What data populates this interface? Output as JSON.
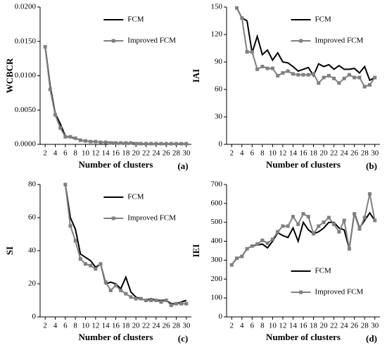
{
  "chart_data": [
    {
      "type": "line",
      "ylabel": "WCBCR",
      "xlabel": "Number of clusters",
      "annotation": "(a)",
      "legend": "upper right",
      "x": [
        2,
        3,
        4,
        5,
        6,
        7,
        8,
        9,
        10,
        11,
        12,
        13,
        14,
        15,
        16,
        17,
        18,
        19,
        20,
        21,
        22,
        23,
        24,
        25,
        26,
        27,
        28,
        29,
        30
      ],
      "xlim": [
        1,
        31
      ],
      "xticks": [
        2,
        4,
        6,
        8,
        10,
        12,
        14,
        16,
        18,
        20,
        22,
        24,
        26,
        28,
        30
      ],
      "ylim": [
        0,
        0.02
      ],
      "yticks": [
        {
          "value": 0,
          "label": "0.0000"
        },
        {
          "value": 0.005,
          "label": "0.0050"
        },
        {
          "value": 0.01,
          "label": "0.0100"
        },
        {
          "value": 0.015,
          "label": "0.0150"
        },
        {
          "value": 0.02,
          "label": "0.0200"
        }
      ],
      "series": [
        {
          "name": "FCM",
          "color": "#000000",
          "marker": "none",
          "values": [
            0.0143,
            0.0085,
            0.0045,
            0.003,
            0.0012,
            0.001,
            0.0009,
            0.0006,
            0.0005,
            0.0004,
            0.0004,
            0.0003,
            0.0003,
            0.0003,
            0.0002,
            0.0002,
            0.0002,
            0.0002,
            0.0002,
            0.0001,
            0.0001,
            0.0001,
            0.0001,
            0.0001,
            0.0001,
            0.0001,
            0.0001,
            0.0001,
            0.0001
          ]
        },
        {
          "name": "Improved FCM",
          "color": "#808080",
          "marker": "square",
          "values": [
            0.0142,
            0.008,
            0.0043,
            0.0024,
            0.0011,
            0.0011,
            0.0009,
            0.0006,
            0.0005,
            0.0004,
            0.0004,
            0.0003,
            0.0003,
            0.0002,
            0.0002,
            0.0002,
            0.0002,
            0.0002,
            0.0001,
            0.0001,
            0.0001,
            0.0001,
            0.0001,
            0.0001,
            0.0001,
            0.0001,
            0.0001,
            0.0001,
            0.0001
          ]
        }
      ]
    },
    {
      "type": "line",
      "ylabel": "IAI",
      "xlabel": "Number of clusters",
      "annotation": "(b)",
      "legend": "upper right",
      "x": [
        2,
        3,
        4,
        5,
        6,
        7,
        8,
        9,
        10,
        11,
        12,
        13,
        14,
        15,
        16,
        17,
        18,
        19,
        20,
        21,
        22,
        23,
        24,
        25,
        26,
        27,
        28,
        29,
        30
      ],
      "xlim": [
        1,
        31
      ],
      "xticks": [
        2,
        4,
        6,
        8,
        10,
        12,
        14,
        16,
        18,
        20,
        22,
        24,
        26,
        28,
        30
      ],
      "ylim": [
        0,
        150
      ],
      "yticks": [
        0,
        30,
        60,
        90,
        120,
        150
      ],
      "series": [
        {
          "name": "FCM",
          "color": "#000000",
          "marker": "none",
          "values": [
            null,
            149,
            138,
            135,
            100,
            118,
            98,
            103,
            92,
            100,
            90,
            89,
            85,
            80,
            82,
            84,
            75,
            88,
            85,
            87,
            82,
            86,
            82,
            82,
            83,
            78,
            85,
            70,
            73
          ]
        },
        {
          "name": "Improved FCM",
          "color": "#808080",
          "marker": "square",
          "values": [
            null,
            149,
            138,
            101,
            101,
            82,
            85,
            83,
            83,
            75,
            78,
            80,
            77,
            76,
            76,
            76,
            77,
            67,
            73,
            75,
            72,
            67,
            72,
            76,
            73,
            73,
            63,
            65,
            73
          ]
        }
      ]
    },
    {
      "type": "line",
      "ylabel": "SI",
      "xlabel": "Number of clusters",
      "annotation": "(c)",
      "legend": "upper right",
      "x": [
        2,
        3,
        4,
        5,
        6,
        7,
        8,
        9,
        10,
        11,
        12,
        13,
        14,
        15,
        16,
        17,
        18,
        19,
        20,
        21,
        22,
        23,
        24,
        25,
        26,
        27,
        28,
        29,
        30
      ],
      "xlim": [
        1,
        31
      ],
      "xticks": [
        2,
        4,
        6,
        8,
        10,
        12,
        14,
        16,
        18,
        20,
        22,
        24,
        26,
        28,
        30
      ],
      "ylim": [
        0,
        80
      ],
      "yticks": [
        0,
        20,
        40,
        60,
        80
      ],
      "series": [
        {
          "name": "FCM",
          "color": "#000000",
          "marker": "none",
          "values": [
            null,
            null,
            null,
            null,
            80,
            60,
            53,
            38,
            36,
            34,
            30,
            32,
            20,
            21,
            20,
            17,
            24,
            15,
            12,
            11,
            10,
            11,
            10,
            10,
            10,
            8,
            8,
            9,
            10
          ]
        },
        {
          "name": "Improved FCM",
          "color": "#808080",
          "marker": "square",
          "values": [
            null,
            null,
            null,
            null,
            80,
            55,
            46,
            35,
            32,
            31,
            29,
            32,
            21,
            16,
            19,
            16,
            14,
            12,
            11,
            11,
            10,
            10,
            10,
            9,
            10,
            7,
            8,
            8,
            8
          ]
        }
      ]
    },
    {
      "type": "line",
      "ylabel": "IEI",
      "xlabel": "Number of clusters",
      "annotation": "(d)",
      "legend": "lower right",
      "x": [
        2,
        3,
        4,
        5,
        6,
        7,
        8,
        9,
        10,
        11,
        12,
        13,
        14,
        15,
        16,
        17,
        18,
        19,
        20,
        21,
        22,
        23,
        24,
        25,
        26,
        27,
        28,
        29,
        30
      ],
      "xlim": [
        1,
        31
      ],
      "xticks": [
        2,
        4,
        6,
        8,
        10,
        12,
        14,
        16,
        18,
        20,
        22,
        24,
        26,
        28,
        30
      ],
      "ylim": [
        0,
        700
      ],
      "yticks": [
        0,
        100,
        200,
        300,
        400,
        500,
        600,
        700
      ],
      "series": [
        {
          "name": "FCM",
          "color": "#000000",
          "marker": "none",
          "values": [
            275,
            310,
            320,
            360,
            375,
            380,
            385,
            365,
            400,
            445,
            430,
            420,
            470,
            400,
            500,
            460,
            440,
            450,
            470,
            500,
            500,
            470,
            460,
            360,
            550,
            470,
            510,
            550,
            510
          ]
        },
        {
          "name": "Improved FCM",
          "color": "#808080",
          "marker": "square",
          "values": [
            275,
            310,
            320,
            360,
            375,
            385,
            405,
            390,
            410,
            450,
            480,
            480,
            530,
            490,
            545,
            530,
            440,
            480,
            500,
            525,
            490,
            450,
            510,
            360,
            545,
            465,
            525,
            650,
            510
          ]
        }
      ]
    }
  ]
}
